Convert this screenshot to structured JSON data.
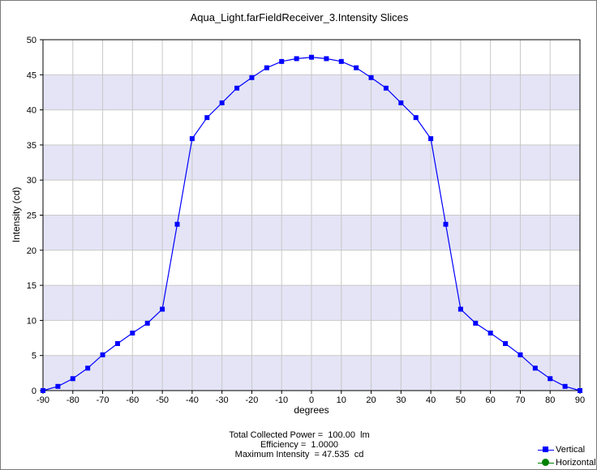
{
  "chart_data": {
    "type": "line",
    "title": "Aqua_Light.farFieldReceiver_3.Intensity Slices",
    "xlabel": "degrees",
    "ylabel": "Intensity (cd)",
    "xlim": [
      -90,
      90
    ],
    "ylim": [
      0,
      50
    ],
    "xticks": [
      -90,
      -80,
      -70,
      -60,
      -50,
      -40,
      -30,
      -20,
      -10,
      0,
      10,
      20,
      30,
      40,
      50,
      60,
      70,
      80,
      90
    ],
    "yticks": [
      0,
      5,
      10,
      15,
      20,
      25,
      30,
      35,
      40,
      45,
      50
    ],
    "grid": true,
    "legend_position": "bottom-right",
    "series": [
      {
        "name": "Vertical",
        "color": "#0000ff",
        "marker": "square",
        "x": [
          -90,
          -85,
          -80,
          -75,
          -70,
          -65,
          -60,
          -55,
          -50,
          -45,
          -40,
          -35,
          -30,
          -25,
          -20,
          -15,
          -10,
          -5,
          0,
          5,
          10,
          15,
          20,
          25,
          30,
          35,
          40,
          45,
          50,
          55,
          60,
          65,
          70,
          75,
          80,
          85,
          90
        ],
        "y": [
          0.0,
          0.6,
          1.7,
          3.2,
          5.1,
          6.7,
          8.2,
          9.6,
          11.6,
          23.7,
          35.9,
          38.9,
          41.0,
          43.1,
          44.6,
          46.0,
          46.9,
          47.3,
          47.5,
          47.3,
          46.9,
          46.0,
          44.6,
          43.1,
          41.0,
          38.9,
          35.9,
          23.7,
          11.6,
          9.6,
          8.2,
          6.7,
          5.1,
          3.2,
          1.7,
          0.6,
          0.0
        ]
      },
      {
        "name": "Horizontal",
        "color": "#008000",
        "marker": "circle",
        "x": [],
        "y": []
      }
    ]
  },
  "stats": {
    "power": "Total Collected Power =  100.00  lm",
    "efficiency": "Efficiency =  1.0000",
    "max_intensity": "Maximum Intensity  = 47.535  cd"
  },
  "colors": {
    "band": "#e4e4f6",
    "grid": "#c8c8c8"
  }
}
